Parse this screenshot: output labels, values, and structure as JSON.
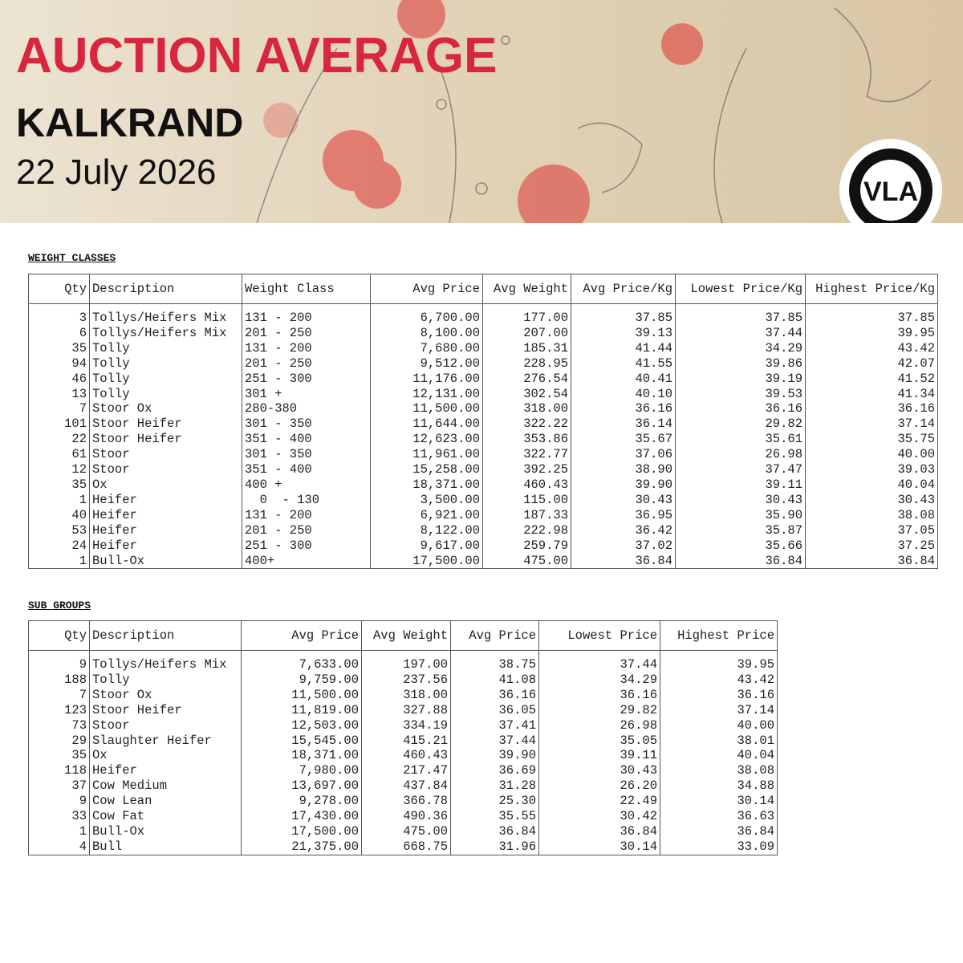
{
  "header": {
    "title": "AUCTION AVERAGE",
    "location": "KALKRAND",
    "date": "22 July 2026",
    "logo": "VLA"
  },
  "weight_classes": {
    "title": "WEIGHT CLASSES",
    "columns": [
      "Qty",
      "Description",
      "Weight Class",
      "Avg Price",
      "Avg Weight",
      "Avg Price/Kg",
      "Lowest Price/Kg",
      "Highest Price/Kg"
    ],
    "rows": [
      [
        "3",
        "Tollys/Heifers Mix",
        "131 - 200",
        "6,700.00",
        "177.00",
        "37.85",
        "37.85",
        "37.85"
      ],
      [
        "6",
        "Tollys/Heifers Mix",
        "201 - 250",
        "8,100.00",
        "207.00",
        "39.13",
        "37.44",
        "39.95"
      ],
      [
        "35",
        "Tolly",
        "131 - 200",
        "7,680.00",
        "185.31",
        "41.44",
        "34.29",
        "43.42"
      ],
      [
        "94",
        "Tolly",
        "201 - 250",
        "9,512.00",
        "228.95",
        "41.55",
        "39.86",
        "42.07"
      ],
      [
        "46",
        "Tolly",
        "251 - 300",
        "11,176.00",
        "276.54",
        "40.41",
        "39.19",
        "41.52"
      ],
      [
        "13",
        "Tolly",
        "301 +",
        "12,131.00",
        "302.54",
        "40.10",
        "39.53",
        "41.34"
      ],
      [
        "7",
        "Stoor Ox",
        "280-380",
        "11,500.00",
        "318.00",
        "36.16",
        "36.16",
        "36.16"
      ],
      [
        "101",
        "Stoor Heifer",
        "301 - 350",
        "11,644.00",
        "322.22",
        "36.14",
        "29.82",
        "37.14"
      ],
      [
        "22",
        "Stoor Heifer",
        "351 - 400",
        "12,623.00",
        "353.86",
        "35.67",
        "35.61",
        "35.75"
      ],
      [
        "61",
        "Stoor",
        "301 - 350",
        "11,961.00",
        "322.77",
        "37.06",
        "26.98",
        "40.00"
      ],
      [
        "12",
        "Stoor",
        "351 - 400",
        "15,258.00",
        "392.25",
        "38.90",
        "37.47",
        "39.03"
      ],
      [
        "35",
        "Ox",
        "400 +",
        "18,371.00",
        "460.43",
        "39.90",
        "39.11",
        "40.04"
      ],
      [
        "1",
        "Heifer",
        "  0  - 130",
        "3,500.00",
        "115.00",
        "30.43",
        "30.43",
        "30.43"
      ],
      [
        "40",
        "Heifer",
        "131 - 200",
        "6,921.00",
        "187.33",
        "36.95",
        "35.90",
        "38.08"
      ],
      [
        "53",
        "Heifer",
        "201 - 250",
        "8,122.00",
        "222.98",
        "36.42",
        "35.87",
        "37.05"
      ],
      [
        "24",
        "Heifer",
        "251 - 300",
        "9,617.00",
        "259.79",
        "37.02",
        "35.66",
        "37.25"
      ],
      [
        "1",
        "Bull-Ox",
        "400+",
        "17,500.00",
        "475.00",
        "36.84",
        "36.84",
        "36.84"
      ]
    ]
  },
  "sub_groups": {
    "title": "SUB GROUPS",
    "columns": [
      "Qty",
      "Description",
      "Avg Price",
      "Avg Weight",
      "Avg Price",
      "Lowest Price",
      "Highest Price"
    ],
    "rows": [
      [
        "9",
        "Tollys/Heifers Mix",
        "7,633.00",
        "197.00",
        "38.75",
        "37.44",
        "39.95"
      ],
      [
        "188",
        "Tolly",
        "9,759.00",
        "237.56",
        "41.08",
        "34.29",
        "43.42"
      ],
      [
        "7",
        "Stoor Ox",
        "11,500.00",
        "318.00",
        "36.16",
        "36.16",
        "36.16"
      ],
      [
        "123",
        "Stoor Heifer",
        "11,819.00",
        "327.88",
        "36.05",
        "29.82",
        "37.14"
      ],
      [
        "73",
        "Stoor",
        "12,503.00",
        "334.19",
        "37.41",
        "26.98",
        "40.00"
      ],
      [
        "29",
        "Slaughter Heifer",
        "15,545.00",
        "415.21",
        "37.44",
        "35.05",
        "38.01"
      ],
      [
        "35",
        "Ox",
        "18,371.00",
        "460.43",
        "39.90",
        "39.11",
        "40.04"
      ],
      [
        "118",
        "Heifer",
        "7,980.00",
        "217.47",
        "36.69",
        "30.43",
        "38.08"
      ],
      [
        "37",
        "Cow Medium",
        "13,697.00",
        "437.84",
        "31.28",
        "26.20",
        "34.88"
      ],
      [
        "9",
        "Cow Lean",
        "9,278.00",
        "366.78",
        "25.30",
        "22.49",
        "30.14"
      ],
      [
        "33",
        "Cow Fat",
        "17,430.00",
        "490.36",
        "35.55",
        "30.42",
        "36.63"
      ],
      [
        "1",
        "Bull-Ox",
        "17,500.00",
        "475.00",
        "36.84",
        "36.84",
        "36.84"
      ],
      [
        "4",
        "Bull",
        "21,375.00",
        "668.75",
        "31.96",
        "30.14",
        "33.09"
      ]
    ]
  }
}
